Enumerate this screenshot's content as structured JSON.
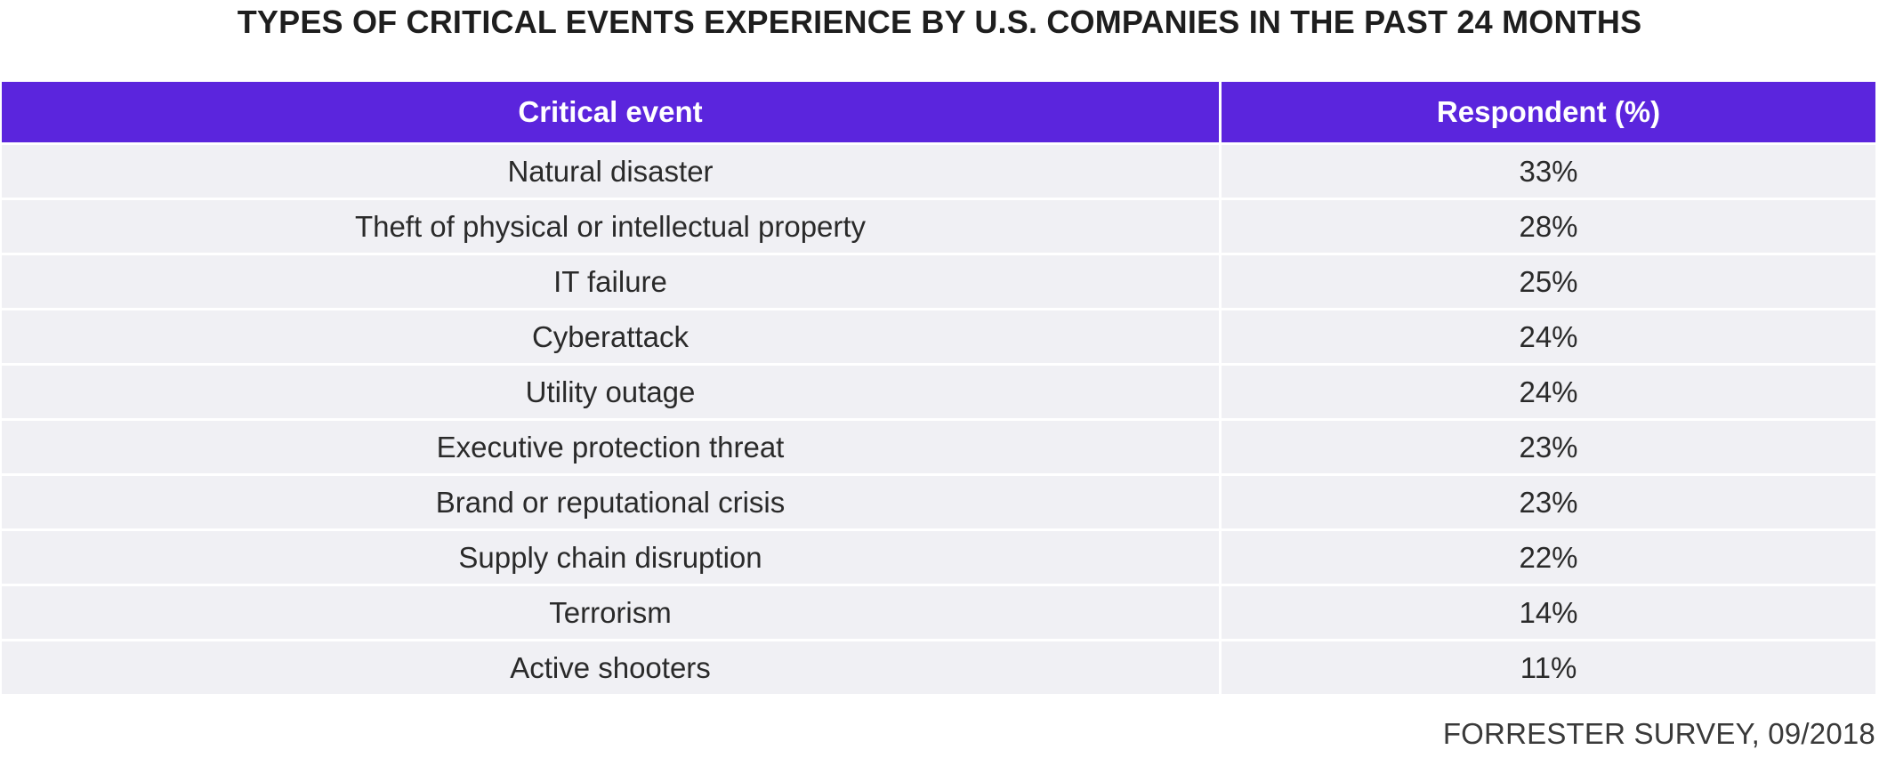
{
  "title": "TYPES OF CRITICAL EVENTS EXPERIENCE BY U.S. COMPANIES IN THE PAST 24 MONTHS",
  "source": "FORRESTER SURVEY, 09/2018",
  "colors": {
    "header_bg": "#5b25dd",
    "row_bg": "#f0f0f4",
    "header_text": "#ffffff"
  },
  "chart_data": {
    "type": "table",
    "title": "TYPES OF CRITICAL EVENTS EXPERIENCE BY U.S. COMPANIES IN THE PAST 24 MONTHS",
    "columns": [
      "Critical event",
      "Respondent (%)"
    ],
    "rows": [
      [
        "Natural disaster",
        "33%"
      ],
      [
        "Theft of physical or intellectual property",
        "28%"
      ],
      [
        "IT failure",
        "25%"
      ],
      [
        "Cyberattack",
        "24%"
      ],
      [
        "Utility outage",
        "24%"
      ],
      [
        "Executive protection threat",
        "23%"
      ],
      [
        "Brand or reputational crisis",
        "23%"
      ],
      [
        "Supply chain disruption",
        "22%"
      ],
      [
        "Terrorism",
        "14%"
      ],
      [
        "Active shooters",
        "11%"
      ]
    ]
  }
}
